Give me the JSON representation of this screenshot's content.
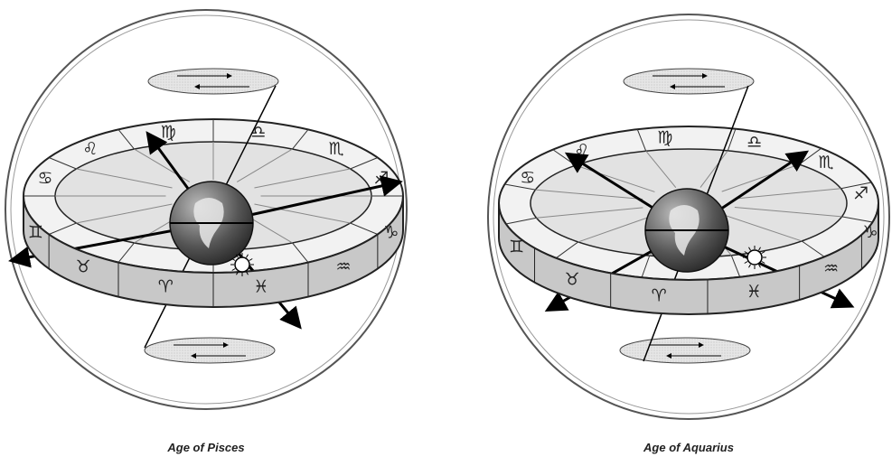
{
  "diagrams": [
    {
      "caption": "Age of Pisces",
      "signs_back": [
        "♋",
        "♌",
        "♍",
        "♎",
        "♏",
        "♐"
      ],
      "signs_front": [
        "♊",
        "♉",
        "♈",
        "♓",
        "♒",
        "♑"
      ]
    },
    {
      "caption": "Age of Aquarius",
      "signs_back": [
        "♋",
        "♌",
        "♍",
        "♎",
        "♏",
        "♐"
      ],
      "signs_front": [
        "♊",
        "♉",
        "♈",
        "♓",
        "♒",
        "♑"
      ]
    }
  ]
}
